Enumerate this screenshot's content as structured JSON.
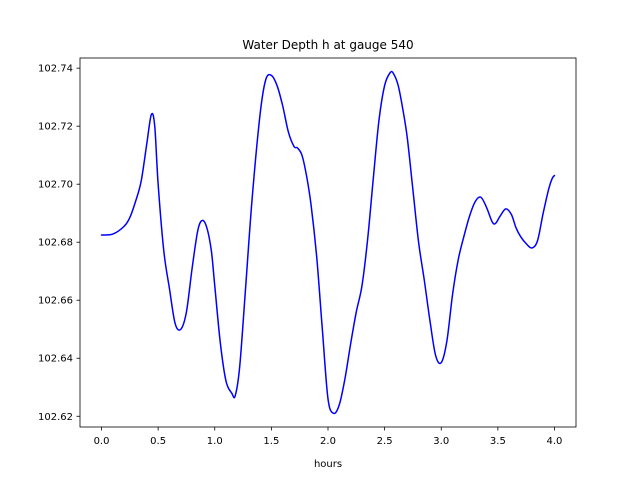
{
  "chart_data": {
    "type": "line",
    "title": "Water Depth h at gauge 540",
    "xlabel": "hours",
    "ylabel": "",
    "xlim": [
      -0.19,
      4.19
    ],
    "ylim": [
      102.6163,
      102.7435
    ],
    "xticks": [
      0.0,
      0.5,
      1.0,
      1.5,
      2.0,
      2.5,
      3.0,
      3.5,
      4.0
    ],
    "xtick_labels": [
      "0.0",
      "0.5",
      "1.0",
      "1.5",
      "2.0",
      "2.5",
      "3.0",
      "3.5",
      "4.0"
    ],
    "yticks": [
      102.62,
      102.64,
      102.66,
      102.68,
      102.7,
      102.72,
      102.74
    ],
    "ytick_labels": [
      "102.62",
      "102.64",
      "102.66",
      "102.68",
      "102.70",
      "102.72",
      "102.74"
    ],
    "grid": false,
    "colors": {
      "line": "#0000ff",
      "axes": "#000000",
      "background": "#ffffff"
    },
    "series": [
      {
        "x": [
          0.0,
          0.1,
          0.2,
          0.25,
          0.3,
          0.35,
          0.4,
          0.44,
          0.47,
          0.5,
          0.55,
          0.6,
          0.65,
          0.7,
          0.75,
          0.8,
          0.85,
          0.89,
          0.93,
          0.97,
          1.0,
          1.05,
          1.1,
          1.15,
          1.18,
          1.22,
          1.27,
          1.33,
          1.4,
          1.45,
          1.5,
          1.55,
          1.6,
          1.65,
          1.7,
          1.73,
          1.77,
          1.81,
          1.85,
          1.9,
          1.95,
          2.0,
          2.05,
          2.1,
          2.15,
          2.2,
          2.25,
          2.3,
          2.35,
          2.4,
          2.45,
          2.5,
          2.55,
          2.58,
          2.62,
          2.66,
          2.7,
          2.75,
          2.8,
          2.85,
          2.9,
          2.95,
          3.0,
          3.05,
          3.1,
          3.15,
          3.2,
          3.25,
          3.3,
          3.35,
          3.4,
          3.45,
          3.48,
          3.52,
          3.57,
          3.62,
          3.66,
          3.7,
          3.75,
          3.8,
          3.85,
          3.9,
          3.95,
          3.98,
          4.0
        ],
        "y": [
          102.6825,
          102.6828,
          102.6855,
          102.6885,
          102.694,
          102.701,
          102.714,
          102.724,
          102.72,
          102.7,
          102.677,
          102.664,
          102.652,
          102.65,
          102.656,
          102.671,
          102.684,
          102.6875,
          102.685,
          102.677,
          102.665,
          102.645,
          102.632,
          102.628,
          102.627,
          102.637,
          102.663,
          102.695,
          102.724,
          102.736,
          102.7375,
          102.734,
          102.727,
          102.718,
          102.713,
          102.7125,
          102.71,
          102.703,
          102.693,
          102.675,
          102.65,
          102.626,
          102.621,
          102.624,
          102.633,
          102.645,
          102.656,
          102.665,
          102.681,
          102.702,
          102.722,
          102.734,
          102.7385,
          102.738,
          102.734,
          102.726,
          102.716,
          102.698,
          102.68,
          102.667,
          102.653,
          102.641,
          102.6385,
          102.646,
          102.662,
          102.674,
          102.682,
          102.689,
          102.694,
          102.6955,
          102.692,
          102.687,
          102.6865,
          102.689,
          102.6915,
          102.6895,
          102.685,
          102.682,
          102.6795,
          102.678,
          102.6805,
          102.69,
          102.6985,
          102.702,
          102.703
        ]
      }
    ]
  }
}
